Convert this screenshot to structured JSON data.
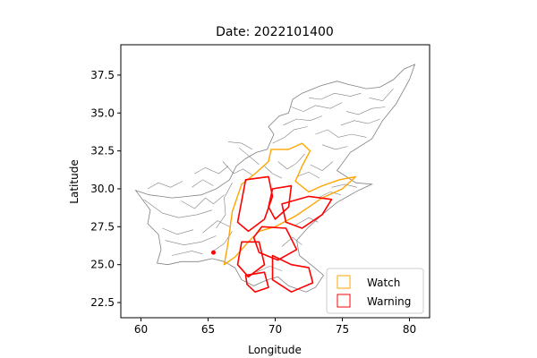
{
  "chart_data": {
    "type": "map",
    "title": "Date: 2022101400",
    "xlabel": "Longitude",
    "ylabel": "Latitude",
    "xlim": [
      58.5,
      81.5
    ],
    "ylim": [
      21.5,
      39.5
    ],
    "xticks": [
      60,
      65,
      70,
      75,
      80
    ],
    "yticks": [
      22.5,
      25.0,
      27.5,
      30.0,
      32.5,
      35.0,
      37.5
    ],
    "xtick_labels": [
      "60",
      "65",
      "70",
      "75",
      "80"
    ],
    "ytick_labels": [
      "22.5",
      "25.0",
      "27.5",
      "30.0",
      "32.5",
      "35.0",
      "37.5"
    ],
    "grid": false,
    "legend_position": "lower-right",
    "legend": [
      {
        "label": "Watch",
        "color": "#ffa500"
      },
      {
        "label": "Warning",
        "color": "#ff0000"
      }
    ],
    "basin_color": "#808080",
    "watch_areas": [
      [
        [
          69.7,
          32.6
        ],
        [
          71.0,
          32.6
        ],
        [
          72.0,
          33.0
        ],
        [
          72.6,
          32.5
        ],
        [
          72.0,
          31.5
        ],
        [
          71.5,
          30.5
        ],
        [
          72.5,
          29.8
        ],
        [
          73.5,
          30.2
        ],
        [
          74.8,
          30.6
        ],
        [
          76.0,
          30.8
        ],
        [
          75.0,
          30.0
        ],
        [
          73.5,
          29.4
        ],
        [
          72.5,
          28.8
        ],
        [
          71.5,
          28.2
        ],
        [
          70.0,
          27.5
        ],
        [
          68.8,
          27.2
        ],
        [
          68.0,
          26.5
        ],
        [
          67.0,
          25.5
        ],
        [
          66.2,
          25.0
        ],
        [
          66.5,
          26.5
        ],
        [
          66.8,
          28.5
        ],
        [
          67.5,
          30.3
        ],
        [
          68.5,
          31.0
        ],
        [
          69.5,
          31.8
        ]
      ]
    ],
    "warning_areas": [
      [
        [
          67.8,
          30.6
        ],
        [
          69.5,
          30.8
        ],
        [
          69.8,
          29.5
        ],
        [
          69.2,
          28.0
        ],
        [
          68.0,
          27.2
        ],
        [
          67.2,
          27.8
        ],
        [
          67.5,
          29.2
        ]
      ],
      [
        [
          69.8,
          30.0
        ],
        [
          71.2,
          30.2
        ],
        [
          71.0,
          28.8
        ],
        [
          70.0,
          28.0
        ],
        [
          69.5,
          28.8
        ]
      ],
      [
        [
          70.5,
          29.0
        ],
        [
          72.5,
          29.5
        ],
        [
          74.2,
          29.3
        ],
        [
          73.5,
          28.3
        ],
        [
          72.0,
          27.4
        ],
        [
          70.8,
          27.8
        ]
      ],
      [
        [
          69.0,
          27.5
        ],
        [
          70.8,
          27.4
        ],
        [
          71.6,
          26.0
        ],
        [
          70.2,
          25.3
        ],
        [
          68.8,
          25.8
        ],
        [
          68.4,
          26.8
        ]
      ],
      [
        [
          67.5,
          26.5
        ],
        [
          68.8,
          26.5
        ],
        [
          69.2,
          25.0
        ],
        [
          68.0,
          24.2
        ],
        [
          67.2,
          25.0
        ]
      ],
      [
        [
          69.8,
          25.6
        ],
        [
          71.2,
          25.0
        ],
        [
          72.5,
          24.8
        ],
        [
          72.8,
          23.8
        ],
        [
          71.2,
          23.2
        ],
        [
          69.8,
          24.0
        ]
      ],
      [
        [
          67.8,
          24.3
        ],
        [
          69.2,
          24.5
        ],
        [
          69.5,
          23.5
        ],
        [
          68.5,
          23.2
        ],
        [
          67.9,
          23.7
        ]
      ]
    ],
    "warning_points": [
      {
        "lon": 65.4,
        "lat": 25.8
      }
    ]
  }
}
